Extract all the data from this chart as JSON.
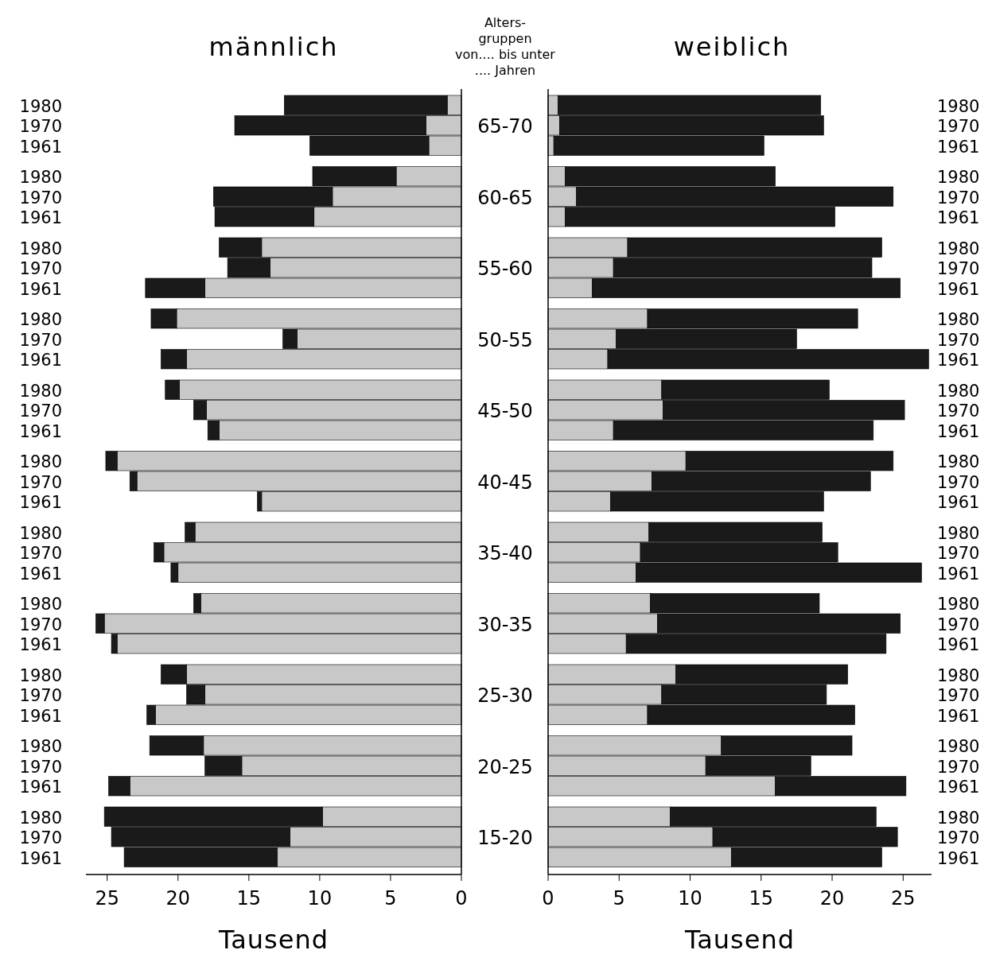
{
  "chart_data": [
    {
      "type": "bar",
      "orientation": "horizontal",
      "stacked": true,
      "title": "männlich",
      "xlabel": "Tausend",
      "xlim": [
        26.5,
        0
      ],
      "xticks": [
        25,
        20,
        15,
        10,
        5,
        0
      ],
      "categories": [
        "1980",
        "1970",
        "1961",
        "1980",
        "1970",
        "1961",
        "1980",
        "1970",
        "1961",
        "1980",
        "1970",
        "1961",
        "1980",
        "1970",
        "1961",
        "1980",
        "1970",
        "1961",
        "1980",
        "1970",
        "1961",
        "1980",
        "1970",
        "1961",
        "1980",
        "1970",
        "1961",
        "1980",
        "1970",
        "1961",
        "1980",
        "1970",
        "1961"
      ],
      "series": [
        {
          "color": "#c8c8c8",
          "values": [
            1.0,
            2.5,
            2.3,
            4.6,
            9.1,
            10.4,
            14.1,
            13.5,
            18.1,
            20.1,
            11.6,
            19.4,
            19.9,
            18.0,
            17.1,
            24.3,
            22.9,
            14.1,
            18.8,
            21.0,
            20.0,
            18.4,
            25.2,
            24.3,
            19.4,
            18.1,
            21.6,
            18.2,
            15.5,
            23.4,
            9.8,
            12.1,
            13.0
          ]
        },
        {
          "color": "#1a1a1a",
          "values": [
            11.5,
            13.5,
            8.4,
            5.9,
            8.4,
            7.0,
            3.0,
            3.0,
            4.2,
            1.8,
            1.0,
            1.8,
            1.0,
            0.9,
            0.8,
            0.8,
            0.5,
            0.3,
            0.7,
            0.7,
            0.5,
            0.5,
            0.6,
            0.4,
            1.8,
            1.3,
            0.6,
            3.8,
            2.6,
            1.5,
            15.4,
            12.6,
            10.8
          ]
        }
      ],
      "annotations": [
        "Alters-\ngruppen\nvon.... bis unter\n.... Jahren",
        "65-70",
        "60-65",
        "55-60",
        "50-55",
        "45-50",
        "40-45",
        "35-40",
        "30-35",
        "25-30",
        "20-25",
        "15-20"
      ]
    },
    {
      "type": "bar",
      "orientation": "horizontal",
      "stacked": true,
      "title": "weiblich",
      "xlabel": "Tausend",
      "xlim": [
        0,
        27
      ],
      "xticks": [
        0,
        5,
        10,
        15,
        20,
        25
      ],
      "categories": [
        "1980",
        "1970",
        "1961",
        "1980",
        "1970",
        "1961",
        "1980",
        "1970",
        "1961",
        "1980",
        "1970",
        "1961",
        "1980",
        "1970",
        "1961",
        "1980",
        "1970",
        "1961",
        "1980",
        "1970",
        "1961",
        "1980",
        "1970",
        "1961",
        "1980",
        "1970",
        "1961",
        "1980",
        "1970",
        "1961",
        "1980",
        "1970",
        "1961"
      ],
      "series": [
        {
          "color": "#c8c8c8",
          "values": [
            0.7,
            0.8,
            0.4,
            1.2,
            2.0,
            1.2,
            5.6,
            4.6,
            3.1,
            7.0,
            4.8,
            4.2,
            8.0,
            8.1,
            4.6,
            9.7,
            7.3,
            4.4,
            7.1,
            6.5,
            6.2,
            7.2,
            7.7,
            5.5,
            9.0,
            8.0,
            7.0,
            12.2,
            11.1,
            16.0,
            8.6,
            11.6,
            12.9
          ]
        },
        {
          "color": "#1a1a1a",
          "values": [
            18.5,
            18.6,
            14.8,
            14.8,
            22.3,
            19.0,
            17.9,
            18.2,
            21.7,
            14.8,
            12.7,
            22.6,
            11.8,
            17.0,
            18.3,
            14.6,
            15.4,
            15.0,
            12.2,
            13.9,
            20.1,
            11.9,
            17.1,
            18.3,
            12.1,
            11.6,
            14.6,
            9.2,
            7.4,
            9.2,
            14.5,
            13.0,
            10.6
          ]
        }
      ]
    }
  ]
}
